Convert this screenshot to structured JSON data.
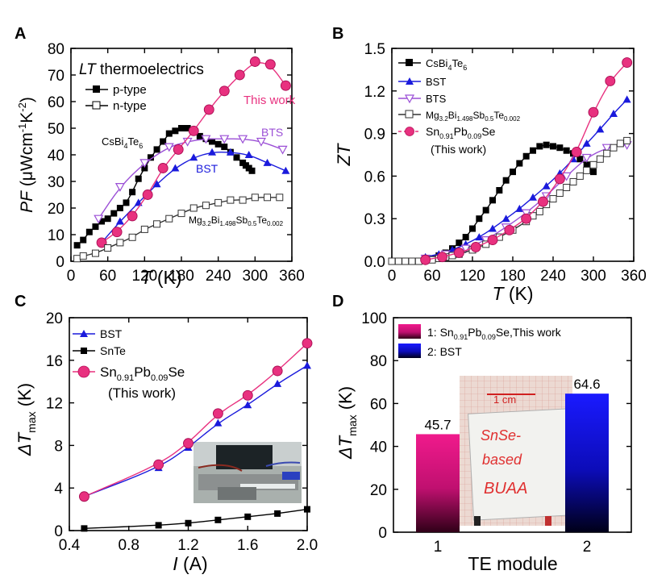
{
  "chart_data": [
    {
      "panel": "A",
      "type": "line",
      "title": "LT thermoelectrics",
      "title_italic_part": "LT",
      "title_rest": " thermoelectrics",
      "xlabel": "T (K)",
      "xlabel_italic": "T",
      "xlabel_rest": " (K)",
      "ylabel": "PF (μWcm⁻¹K⁻²)",
      "ylabel_italic": "PF",
      "ylabel_rest": " (μWcm⁻¹K⁻²)",
      "xlim": [
        0,
        360
      ],
      "ylim": [
        0,
        80
      ],
      "xticks": [
        "0",
        "60",
        "120",
        "180",
        "240",
        "300",
        "360"
      ],
      "yticks": [
        "0",
        "10",
        "20",
        "30",
        "40",
        "50",
        "60",
        "70",
        "80"
      ],
      "legend": [
        {
          "label": "p-type",
          "marker": "filled-square"
        },
        {
          "label": "n-type",
          "marker": "open-square"
        }
      ],
      "annotations": {
        "this_work": "This work",
        "bts": "BTS",
        "bst": "BST",
        "csbi4te6": "CsBi4Te6",
        "mg": "Mg3.2Bi1.498Sb0.5Te0.002"
      },
      "series": [
        {
          "name": "CsBi4Te6",
          "color": "#000000",
          "marker": "filled-square",
          "x": [
            10,
            20,
            30,
            40,
            50,
            60,
            70,
            80,
            90,
            100,
            110,
            120,
            130,
            140,
            150,
            160,
            170,
            180,
            190,
            200,
            210,
            220,
            230,
            240,
            250,
            260,
            270,
            280,
            285,
            290,
            295
          ],
          "y": [
            6,
            8,
            11,
            13,
            15,
            16,
            18,
            20,
            22,
            26,
            31,
            35,
            39,
            42,
            45,
            48,
            49,
            50,
            50,
            49,
            47,
            46,
            45,
            44,
            43,
            41,
            39,
            37,
            36,
            35,
            34
          ]
        },
        {
          "name": "BTS",
          "color": "#9b4fd6",
          "marker": "open-triangle-down",
          "x": [
            45,
            80,
            120,
            160,
            190,
            220,
            250,
            280,
            310,
            345
          ],
          "y": [
            16,
            28,
            37,
            43,
            45,
            46,
            46,
            46,
            45,
            42
          ]
        },
        {
          "name": "BST",
          "color": "#1a1adc",
          "marker": "filled-triangle-up",
          "x": [
            50,
            80,
            110,
            140,
            170,
            200,
            230,
            260,
            290,
            320,
            350
          ],
          "y": [
            7,
            15,
            22,
            29,
            35,
            39,
            41,
            41,
            40,
            37,
            34
          ]
        },
        {
          "name": "Sn0.91Pb0.09Se (This work)",
          "color": "#e8317f",
          "marker": "filled-circle",
          "x": [
            50,
            75,
            100,
            125,
            150,
            175,
            200,
            225,
            250,
            275,
            300,
            325,
            350
          ],
          "y": [
            7,
            11,
            17,
            25,
            35,
            42,
            49,
            57,
            64,
            70,
            75,
            74,
            66
          ]
        },
        {
          "name": "Mg3.2Bi1.498Sb0.5Te0.002",
          "color": "#333333",
          "marker": "open-square",
          "x": [
            10,
            20,
            40,
            60,
            80,
            100,
            120,
            140,
            160,
            180,
            200,
            220,
            240,
            260,
            280,
            300,
            320,
            340
          ],
          "y": [
            1,
            2,
            3,
            5,
            7,
            9,
            12,
            14,
            16,
            18,
            20,
            21,
            22,
            23,
            23,
            24,
            24,
            24
          ]
        }
      ]
    },
    {
      "panel": "B",
      "type": "line",
      "xlabel": "T (K)",
      "xlabel_italic": "T",
      "xlabel_rest": " (K)",
      "ylabel": "ZT",
      "xlim": [
        0,
        360
      ],
      "ylim": [
        0,
        1.5
      ],
      "xticks": [
        "0",
        "60",
        "120",
        "180",
        "240",
        "300",
        "360"
      ],
      "yticks": [
        "0.0",
        "0.3",
        "0.6",
        "0.9",
        "1.2",
        "1.5"
      ],
      "legend": [
        {
          "label": "CsBi4Te6",
          "marker": "filled-square"
        },
        {
          "label": "BST",
          "marker": "filled-triangle-up"
        },
        {
          "label": "BTS",
          "marker": "open-triangle-down"
        },
        {
          "label": "Mg3.2Bi1.498Sb0.5Te0.002",
          "marker": "open-square"
        },
        {
          "label": "Sn0.91Pb0.09Se",
          "marker": "filled-circle"
        },
        {
          "label": "(This work)",
          "marker": "none"
        }
      ],
      "series": [
        {
          "name": "CsBi4Te6",
          "color": "#000000",
          "marker": "filled-square",
          "x": [
            50,
            60,
            70,
            80,
            90,
            100,
            110,
            120,
            130,
            140,
            150,
            160,
            170,
            180,
            190,
            200,
            210,
            220,
            230,
            240,
            250,
            260,
            270,
            280,
            290,
            300
          ],
          "y": [
            0.01,
            0.02,
            0.04,
            0.06,
            0.09,
            0.13,
            0.17,
            0.23,
            0.3,
            0.36,
            0.43,
            0.5,
            0.57,
            0.63,
            0.69,
            0.74,
            0.78,
            0.81,
            0.82,
            0.81,
            0.8,
            0.78,
            0.76,
            0.72,
            0.68,
            0.63
          ]
        },
        {
          "name": "BST",
          "color": "#1a1adc",
          "marker": "filled-triangle-up",
          "x": [
            50,
            70,
            90,
            110,
            130,
            150,
            170,
            190,
            210,
            230,
            250,
            270,
            290,
            310,
            330,
            350
          ],
          "y": [
            0.03,
            0.05,
            0.08,
            0.12,
            0.17,
            0.23,
            0.3,
            0.37,
            0.45,
            0.53,
            0.62,
            0.72,
            0.83,
            0.93,
            1.04,
            1.14
          ]
        },
        {
          "name": "BTS",
          "color": "#9b4fd6",
          "marker": "open-triangle-down",
          "x": [
            50,
            80,
            110,
            140,
            170,
            200,
            230,
            260,
            290,
            320,
            350
          ],
          "y": [
            0.02,
            0.05,
            0.09,
            0.15,
            0.24,
            0.34,
            0.46,
            0.6,
            0.73,
            0.8,
            0.82
          ]
        },
        {
          "name": "Mg3.2Bi1.498Sb0.5Te0.002",
          "color": "#333333",
          "marker": "open-square",
          "x": [
            0,
            10,
            20,
            30,
            40,
            50,
            60,
            70,
            80,
            90,
            100,
            120,
            140,
            160,
            180,
            200,
            210,
            220,
            230,
            240,
            250,
            260,
            270,
            280,
            290,
            300,
            310,
            320,
            330,
            340,
            350
          ],
          "y": [
            0.0,
            0.0,
            0.0,
            0.0,
            0.0,
            0.01,
            0.01,
            0.02,
            0.03,
            0.04,
            0.05,
            0.08,
            0.12,
            0.17,
            0.22,
            0.28,
            0.32,
            0.35,
            0.4,
            0.44,
            0.48,
            0.52,
            0.56,
            0.6,
            0.64,
            0.68,
            0.72,
            0.76,
            0.8,
            0.83,
            0.85
          ]
        },
        {
          "name": "Sn0.91Pb0.09Se (This work)",
          "color": "#e8317f",
          "marker": "filled-circle",
          "x": [
            50,
            75,
            100,
            125,
            150,
            175,
            200,
            225,
            250,
            275,
            300,
            325,
            350
          ],
          "y": [
            0.01,
            0.03,
            0.06,
            0.1,
            0.15,
            0.22,
            0.3,
            0.42,
            0.58,
            0.77,
            1.05,
            1.27,
            1.4
          ]
        }
      ]
    },
    {
      "panel": "C",
      "type": "line",
      "xlabel": "I (A)",
      "xlabel_italic": "I",
      "xlabel_rest": " (A)",
      "ylabel": "ΔTmax (K)",
      "xlim": [
        0.4,
        2.0
      ],
      "ylim": [
        0,
        20
      ],
      "xticks": [
        "0.4",
        "0.8",
        "1.2",
        "1.6",
        "2.0"
      ],
      "yticks": [
        "0",
        "4",
        "8",
        "12",
        "16",
        "20"
      ],
      "legend": [
        {
          "label": "BST",
          "marker": "filled-triangle-up"
        },
        {
          "label": "SnTe",
          "marker": "filled-square"
        },
        {
          "label": "Sn0.91Pb0.09Se",
          "marker": "filled-circle"
        },
        {
          "label": "(This work)",
          "marker": "none"
        }
      ],
      "series": [
        {
          "name": "BST",
          "color": "#1a1adc",
          "marker": "filled-triangle-up",
          "x": [
            0.5,
            1.0,
            1.2,
            1.4,
            1.6,
            1.8,
            2.0
          ],
          "y": [
            3.2,
            5.9,
            7.8,
            10.1,
            11.8,
            13.8,
            15.5
          ]
        },
        {
          "name": "SnTe",
          "color": "#000000",
          "marker": "filled-square",
          "x": [
            0.5,
            1.0,
            1.2,
            1.4,
            1.6,
            1.8,
            2.0
          ],
          "y": [
            0.2,
            0.5,
            0.7,
            1.0,
            1.3,
            1.6,
            2.0
          ]
        },
        {
          "name": "Sn0.91Pb0.09Se (This work)",
          "color": "#e8317f",
          "marker": "filled-circle",
          "x": [
            0.5,
            1.0,
            1.2,
            1.4,
            1.6,
            1.8,
            2.0
          ],
          "y": [
            3.2,
            6.2,
            8.2,
            11.0,
            12.7,
            15.0,
            17.6
          ]
        }
      ]
    },
    {
      "panel": "D",
      "type": "bar",
      "xlabel": "TE module",
      "ylabel": "ΔTmax (K)",
      "ylim": [
        0,
        100
      ],
      "yticks": [
        "0",
        "20",
        "40",
        "60",
        "80",
        "100"
      ],
      "categories": [
        "1",
        "2"
      ],
      "values": [
        45.7,
        64.6
      ],
      "value_labels": [
        "45.7",
        "64.6"
      ],
      "legend": [
        {
          "label": "1: Sn0.91Pb0.09Se,This work",
          "color": "#e0147a"
        },
        {
          "label": "2: BST",
          "color": "#1010e0"
        }
      ],
      "photo_text": [
        "1 cm",
        "SnSe-",
        "based",
        "BUAA"
      ]
    }
  ]
}
